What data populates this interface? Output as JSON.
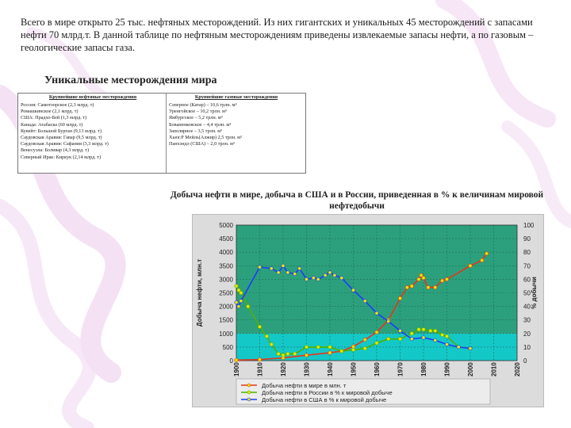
{
  "intro_text": "Всего в мире открыто 25 тыс. нефтяных месторождений. Из них гигантских и уникальных 45 месторождений с запасами нефти 70 млрд.т. В данной таблице по нефтяным месторождениям приведены извлекаемые запасы нефти, а по газовым – геологические запасы газа.",
  "subheading": "Уникальные месторождения мира",
  "table": {
    "header_oil": "Крупнейшие нефтяные месторождения",
    "header_gas": "Крупнейшие газовые месторождения",
    "oil_rows": [
      "Россия:      Самотлорское (2,3 млрд. т)",
      "                   Ромашкинское (2,1 млрд. т)",
      "США:          Прадхо-Бей (1,3 млрд. т)",
      "Канада:      Атабаска (60 млрд. т)",
      "Кувейт: Большой Бурган (9,13 млрд. т)",
      "Саудовская Аравия: Гавар (9,5 млрд. т)",
      "Саудовская Аравия: Сафания (3,3 млрд. т)",
      "Венесуэла: Боливар (4,3 млрд. т)",
      "Северный Ирак: Киркук (2,14 млрд. т)"
    ],
    "gas_rows": [
      "Северное (Катар) – 10,6 трлн. м³",
      "Уренгойское – 10,2 трлн. м³",
      "Ямбургское – 5,2 трлн. м³",
      "Бованенковское – 4,4 трлн. м³",
      "Заполярное – 3,5 трлн. м³",
      "Хьюг.Р Мейль(Алжир) 2,5 трлн. м³",
      "Панхэндл (США) – 2,0 трлн. м³"
    ]
  },
  "chart_title": "Добыча нефти в мире, добыча в США и в России, приведенная в % к величинам мировой нефтедобычи",
  "colors": {
    "chart_bg_upper": "#2ca07c",
    "chart_bg_lower": "#14c8c8",
    "world": "#e8341c",
    "russia": "#50b000",
    "usa": "#1a3cff",
    "markers": "#e6e600"
  },
  "chart_data": {
    "type": "line",
    "title": "Добыча нефти в мире, добыча в США и в России, приведенная в % к величинам мировой нефтедобычи",
    "ylabel": "Добыча нефти, млн.т",
    "ylabel_right": "% добычи",
    "x_ticks": [
      "1900",
      "1910",
      "1920",
      "1930",
      "1940",
      "1950",
      "1960",
      "1970",
      "1980",
      "1990",
      "2000",
      "2010",
      "2020"
    ],
    "y_ticks": [
      "0",
      "500",
      "1000",
      "1500",
      "2000",
      "2500",
      "3000",
      "3500",
      "4000",
      "4500",
      "5000"
    ],
    "y_right_ticks": [
      "0",
      "10",
      "20",
      "30",
      "40",
      "50",
      "60",
      "70",
      "80",
      "90",
      "100"
    ],
    "xlim": [
      1900,
      2020
    ],
    "ylim": [
      0,
      5000
    ],
    "ylim_right": [
      0,
      100
    ],
    "bands": [
      {
        "from": 0,
        "to": 1000,
        "color": "lower"
      },
      {
        "from": 1000,
        "to": 5000,
        "color": "upper"
      }
    ],
    "series": [
      {
        "name": "Добыча нефти в мире в млн. т",
        "axis": "left",
        "color": "world",
        "x": [
          1900,
          1910,
          1920,
          1930,
          1940,
          1945,
          1950,
          1955,
          1960,
          1965,
          1970,
          1973,
          1975,
          1978,
          1979,
          1980,
          1982,
          1985,
          1988,
          1990,
          2000,
          2005,
          2007
        ],
        "y": [
          20,
          40,
          100,
          200,
          290,
          350,
          520,
          770,
          1050,
          1500,
          2300,
          2700,
          2750,
          3000,
          3150,
          3050,
          2700,
          2700,
          2950,
          3000,
          3500,
          3700,
          3950
        ]
      },
      {
        "name": "Добыча нефти в России в % к мировой добыче",
        "axis": "right",
        "color": "russia",
        "x": [
          1900,
          1901,
          1902,
          1905,
          1910,
          1913,
          1915,
          1918,
          1920,
          1922,
          1925,
          1930,
          1935,
          1940,
          1945,
          1950,
          1955,
          1960,
          1965,
          1970,
          1975,
          1978,
          1980,
          1983,
          1985,
          1988,
          1990,
          1995,
          2000
        ],
        "y": [
          55,
          52,
          50,
          40,
          25,
          18,
          12,
          5,
          4,
          5,
          5,
          10,
          10,
          10,
          7,
          8,
          9,
          13,
          16,
          16,
          20,
          23,
          23,
          22,
          22,
          19,
          18,
          10,
          9
        ]
      },
      {
        "name": "Добыча нефти в США в % к мировой добыче",
        "axis": "right",
        "color": "usa",
        "x": [
          1900,
          1901,
          1902,
          1910,
          1915,
          1918,
          1920,
          1922,
          1925,
          1927,
          1930,
          1933,
          1935,
          1938,
          1940,
          1942,
          1945,
          1950,
          1955,
          1960,
          1965,
          1970,
          1975,
          1980,
          1985,
          1990,
          1995,
          2000
        ],
        "y": [
          43,
          40,
          44,
          69,
          68,
          65,
          70,
          65,
          64,
          68,
          60,
          61,
          60,
          63,
          65,
          63,
          61,
          52,
          44,
          35,
          29,
          22,
          16,
          17,
          15,
          12,
          10,
          9
        ]
      }
    ],
    "legend": [
      "Добыча нефти в мире в млн. т",
      "Добыча нефти в России в % к мировой добыче",
      "Добыча нефти в США в % к мировой добыче"
    ],
    "legend_position": "bottom"
  }
}
